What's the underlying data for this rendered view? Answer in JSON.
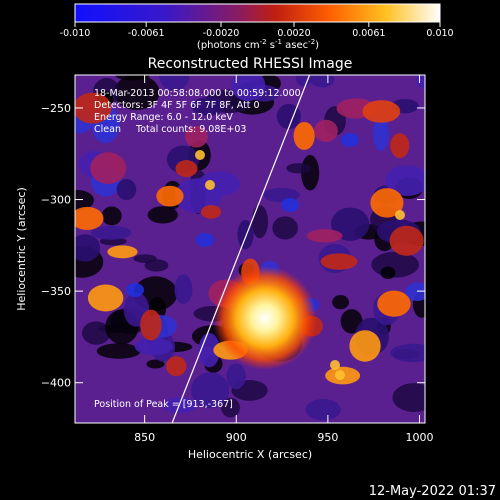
{
  "colorbar": {
    "ticks": [
      "-0.010",
      "-0.0061",
      "-0.0020",
      "0.0020",
      "0.0061",
      "0.010"
    ],
    "units_main": "(photons cm",
    "units_exp1": "-2",
    "units_mid": " s",
    "units_exp2": "-1",
    "units_end": " asec",
    "units_exp3": "-2",
    "units_close": ")"
  },
  "plot": {
    "title": "Reconstructed RHESSI Image",
    "info_lines": [
      "18-Mar-2013 00:58:08.000 to 00:59:12.000",
      "Detectors: 3F 4F 5F 6F 7F 8F, Att 0",
      "Energy Range: 6.0 - 12.0 keV",
      "Clean     Total counts: 9.08E+03"
    ],
    "peak_label": "Position of Peak = [913,-367]",
    "xlabel": "Heliocentric X (arcsec)",
    "ylabel": "Heliocentric Y (arcsec)"
  },
  "timestamp": "12-May-2022 01:37",
  "chart_data": {
    "type": "heatmap",
    "title": "Reconstructed RHESSI Image",
    "xlabel": "Heliocentric X (arcsec)",
    "ylabel": "Heliocentric Y (arcsec)",
    "xlim": [
      812,
      1003
    ],
    "ylim": [
      -422,
      -232
    ],
    "xticks": [
      850,
      900,
      950,
      1000
    ],
    "yticks": [
      -250,
      -300,
      -350,
      -400
    ],
    "colorbar_range": [
      -0.01,
      0.01
    ],
    "colorbar_ticks": [
      -0.01,
      -0.0061,
      -0.002,
      0.002,
      0.0061,
      0.01
    ],
    "colormap": [
      "#0000ff",
      "#7030a0",
      "#a02060",
      "#e03010",
      "#ff8000",
      "#ffd000",
      "#ffffff"
    ],
    "peak": [
      913,
      -367
    ],
    "limb_line": [
      [
        865,
        -422
      ],
      [
        940,
        -232
      ]
    ]
  }
}
